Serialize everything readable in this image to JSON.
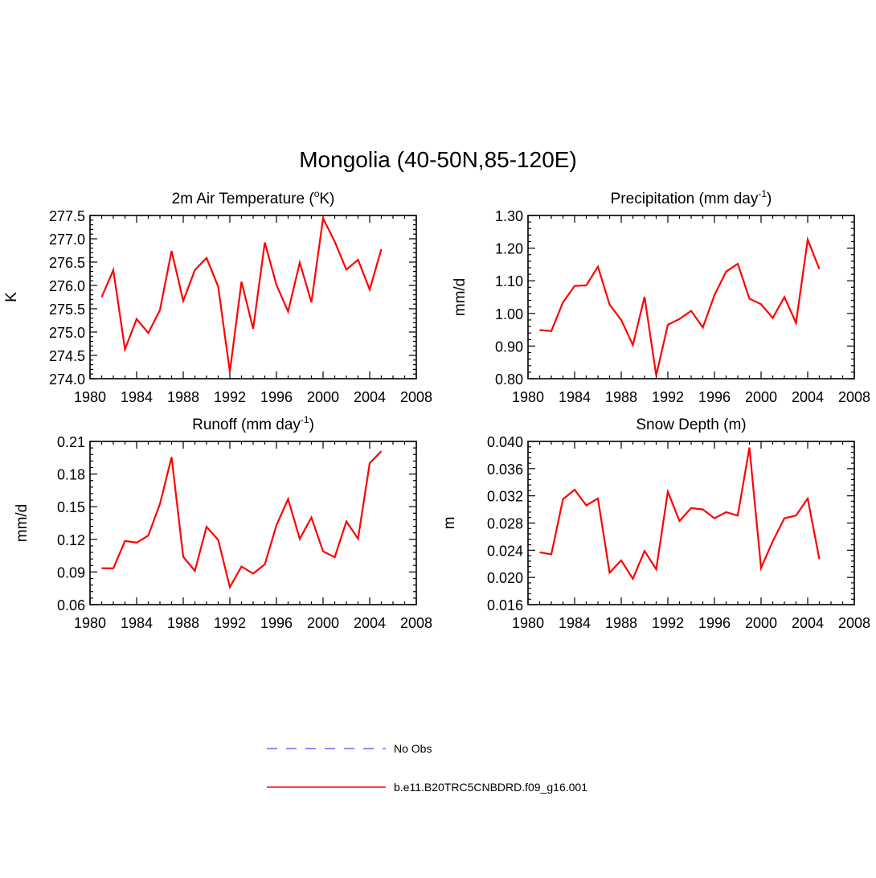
{
  "title": "Mongolia (40-50N,85-120E)",
  "legend": {
    "position": "bottom-center",
    "entries": [
      {
        "label": "No Obs",
        "color": "#6666ff",
        "style": "dashed"
      },
      {
        "label": "b.e11.B20TRC5CNBDRD.f09_g16.001",
        "color": "#ff0000",
        "style": "solid"
      }
    ]
  },
  "chart_data": [
    {
      "type": "line",
      "title": "2m Air Temperature (°K)",
      "title_parts": [
        "2m Air Temperature (",
        "o",
        "K)"
      ],
      "xlabel": "",
      "ylabel": "K",
      "xlim": [
        1980,
        2008
      ],
      "ylim": [
        274.0,
        277.5
      ],
      "xticks": [
        "1980",
        "1984",
        "1988",
        "1992",
        "1996",
        "2000",
        "2004",
        "2008"
      ],
      "yticks": [
        "274.0",
        "274.5",
        "275.0",
        "275.5",
        "276.0",
        "276.5",
        "277.0",
        "277.5"
      ],
      "series": [
        {
          "name": "b.e11.B20TRC5CNBDRD.f09_g16.001",
          "color": "#ff0000",
          "x": [
            1981,
            1982,
            1983,
            1984,
            1985,
            1986,
            1987,
            1988,
            1989,
            1990,
            1991,
            1992,
            1993,
            1994,
            1995,
            1996,
            1997,
            1998,
            1999,
            2000,
            2001,
            2002,
            2003,
            2004,
            2005
          ],
          "values": [
            275.75,
            276.33,
            274.63,
            275.28,
            274.98,
            275.47,
            276.74,
            275.67,
            276.33,
            276.59,
            275.97,
            274.15,
            276.08,
            275.07,
            276.92,
            276.01,
            275.44,
            276.49,
            275.64,
            277.44,
            276.94,
            276.34,
            276.55,
            275.91,
            276.78
          ]
        }
      ]
    },
    {
      "type": "line",
      "title": "Precipitation (mm day-1)",
      "title_parts": [
        "Precipitation (mm day",
        "-1",
        ")"
      ],
      "xlabel": "",
      "ylabel": "mm/d",
      "xlim": [
        1980,
        2008
      ],
      "ylim": [
        0.8,
        1.3
      ],
      "xticks": [
        "1980",
        "1984",
        "1988",
        "1992",
        "1996",
        "2000",
        "2004",
        "2008"
      ],
      "yticks": [
        "0.80",
        "0.90",
        "1.00",
        "1.10",
        "1.20",
        "1.30"
      ],
      "series": [
        {
          "name": "b.e11.B20TRC5CNBDRD.f09_g16.001",
          "color": "#ff0000",
          "x": [
            1981,
            1982,
            1983,
            1984,
            1985,
            1986,
            1987,
            1988,
            1989,
            1990,
            1991,
            1992,
            1993,
            1994,
            1995,
            1996,
            1997,
            1998,
            1999,
            2000,
            2001,
            2002,
            2003,
            2004,
            2005
          ],
          "values": [
            0.949,
            0.946,
            1.034,
            1.084,
            1.086,
            1.143,
            1.027,
            0.98,
            0.903,
            1.051,
            0.81,
            0.965,
            0.983,
            1.008,
            0.957,
            1.056,
            1.128,
            1.152,
            1.045,
            1.028,
            0.986,
            1.05,
            0.971,
            1.226,
            1.136
          ]
        }
      ]
    },
    {
      "type": "line",
      "title": "Runoff (mm day-1)",
      "title_parts": [
        "Runoff (mm day",
        "-1",
        ")"
      ],
      "xlabel": "",
      "ylabel": "mm/d",
      "xlim": [
        1980,
        2008
      ],
      "ylim": [
        0.06,
        0.21
      ],
      "xticks": [
        "1980",
        "1984",
        "1988",
        "1992",
        "1996",
        "2000",
        "2004",
        "2008"
      ],
      "yticks": [
        "0.06",
        "0.09",
        "0.12",
        "0.15",
        "0.18",
        "0.21"
      ],
      "series": [
        {
          "name": "b.e11.B20TRC5CNBDRD.f09_g16.001",
          "color": "#ff0000",
          "x": [
            1981,
            1982,
            1983,
            1984,
            1985,
            1986,
            1987,
            1988,
            1989,
            1990,
            1991,
            1992,
            1993,
            1994,
            1995,
            1996,
            1997,
            1998,
            1999,
            2000,
            2001,
            2002,
            2003,
            2004,
            2005
          ],
          "values": [
            0.0935,
            0.0933,
            0.1185,
            0.117,
            0.1235,
            0.1525,
            0.1955,
            0.104,
            0.091,
            0.1315,
            0.1195,
            0.076,
            0.095,
            0.0885,
            0.097,
            0.133,
            0.157,
            0.1205,
            0.14,
            0.109,
            0.1035,
            0.1365,
            0.1205,
            0.19,
            0.201
          ]
        }
      ]
    },
    {
      "type": "line",
      "title": "Snow Depth (m)",
      "title_parts": [
        "Snow Depth (m)",
        "",
        ""
      ],
      "xlabel": "",
      "ylabel": "m",
      "xlim": [
        1980,
        2008
      ],
      "ylim": [
        0.016,
        0.04
      ],
      "xticks": [
        "1980",
        "1984",
        "1988",
        "1992",
        "1996",
        "2000",
        "2004",
        "2008"
      ],
      "yticks": [
        "0.016",
        "0.020",
        "0.024",
        "0.028",
        "0.032",
        "0.036",
        "0.040"
      ],
      "series": [
        {
          "name": "b.e11.B20TRC5CNBDRD.f09_g16.001",
          "color": "#ff0000",
          "x": [
            1981,
            1982,
            1983,
            1984,
            1985,
            1986,
            1987,
            1988,
            1989,
            1990,
            1991,
            1992,
            1993,
            1994,
            1995,
            1996,
            1997,
            1998,
            1999,
            2000,
            2001,
            2002,
            2003,
            2004,
            2005
          ],
          "values": [
            0.0237,
            0.0234,
            0.0315,
            0.0329,
            0.0306,
            0.0316,
            0.0207,
            0.0225,
            0.0198,
            0.0239,
            0.0212,
            0.0326,
            0.0283,
            0.0302,
            0.03,
            0.0287,
            0.0296,
            0.0291,
            0.0391,
            0.0214,
            0.0253,
            0.0287,
            0.0291,
            0.0316,
            0.0227
          ]
        }
      ]
    }
  ]
}
